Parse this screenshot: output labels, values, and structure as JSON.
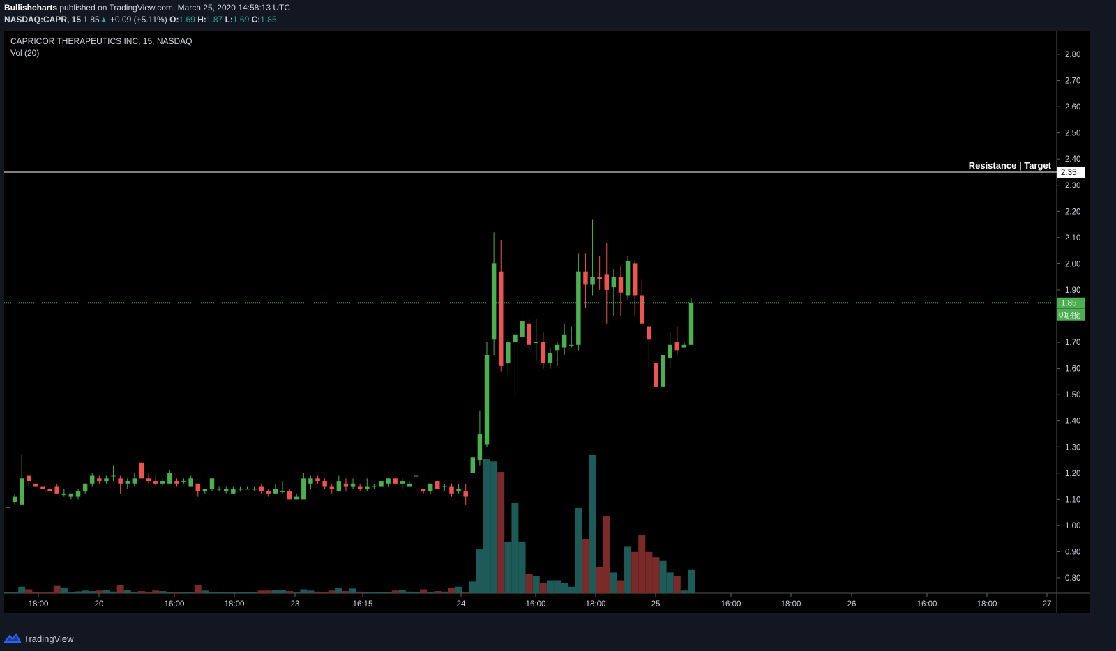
{
  "header": {
    "author": "Bullishcharts",
    "published_text": "published on TradingView.com, March 25, 2020 14:58:13 UTC",
    "symbol": "NASDAQ:CAPR, 15",
    "last": "1.85",
    "change_arrow": "▲",
    "change": "+0.09 (+5.11%)",
    "o_label": "O:",
    "o_value": "1.69",
    "h_label": "H:",
    "h_value": "1.87",
    "l_label": "L:",
    "l_value": "1.69",
    "c_label": "C:",
    "c_value": "1.85"
  },
  "legend": {
    "title": "CAPRICOR THERAPEUTICS INC, 15, NASDAQ",
    "volume_indicator": "Vol (20)"
  },
  "footer": {
    "brand": "TradingView",
    "logo_icon": "tradingview-logo-icon"
  },
  "colors": {
    "up": "#4caf50",
    "down": "#ef5350",
    "volume_up": "#1e5a57",
    "volume_down": "#7b2a2a",
    "resistance": "#ffffff",
    "last_price": "#4caf50"
  },
  "chart_data": {
    "type": "candlestick",
    "ylim": [
      0.75,
      2.85
    ],
    "y_ticks": [
      "2.80",
      "2.70",
      "2.60",
      "2.50",
      "2.40",
      "2.30",
      "2.20",
      "2.10",
      "2.00",
      "1.90",
      "1.80",
      "1.70",
      "1.60",
      "1.50",
      "1.40",
      "1.30",
      "1.20",
      "1.10",
      "1.00",
      "0.90",
      "0.80"
    ],
    "x_ticks": [
      "18:00",
      "20",
      "16:00",
      "18:00",
      "23",
      "16:15",
      "24",
      "16:00",
      "18:00",
      "25",
      "16:00",
      "18:00",
      "26",
      "16:00",
      "18:00",
      "27"
    ],
    "resistance": {
      "label": "Resistance | Target",
      "value": 2.35,
      "value_label": "2.35"
    },
    "last_price": {
      "value": 1.85,
      "value_label": "1.85",
      "countdown": "01:49"
    },
    "candles": [
      {
        "o": 1.07,
        "h": 1.07,
        "l": 1.07,
        "c": 1.07,
        "v": 0.005
      },
      {
        "o": 1.09,
        "h": 1.12,
        "l": 1.08,
        "c": 1.11,
        "v": 0.005
      },
      {
        "o": 1.08,
        "h": 1.27,
        "l": 1.08,
        "c": 1.18,
        "v": 0.025
      },
      {
        "o": 1.19,
        "h": 1.19,
        "l": 1.15,
        "c": 1.17,
        "v": 0.015
      },
      {
        "o": 1.16,
        "h": 1.16,
        "l": 1.14,
        "c": 1.15,
        "v": 0.005
      },
      {
        "o": 1.15,
        "h": 1.15,
        "l": 1.13,
        "c": 1.14,
        "v": 0.005
      },
      {
        "o": 1.14,
        "h": 1.16,
        "l": 1.13,
        "c": 1.13,
        "v": 0.003
      },
      {
        "o": 1.15,
        "h": 1.16,
        "l": 1.12,
        "c": 1.12,
        "v": 0.028
      },
      {
        "o": 1.12,
        "h": 1.14,
        "l": 1.11,
        "c": 1.12,
        "v": 0.022
      },
      {
        "o": 1.11,
        "h": 1.12,
        "l": 1.1,
        "c": 1.12,
        "v": 0.005
      },
      {
        "o": 1.11,
        "h": 1.14,
        "l": 1.1,
        "c": 1.13,
        "v": 0.007
      },
      {
        "o": 1.13,
        "h": 1.16,
        "l": 1.12,
        "c": 1.16,
        "v": 0.01
      },
      {
        "o": 1.16,
        "h": 1.2,
        "l": 1.15,
        "c": 1.19,
        "v": 0.008
      },
      {
        "o": 1.18,
        "h": 1.19,
        "l": 1.16,
        "c": 1.17,
        "v": 0.01
      },
      {
        "o": 1.17,
        "h": 1.19,
        "l": 1.16,
        "c": 1.18,
        "v": 0.012
      },
      {
        "o": 1.19,
        "h": 1.23,
        "l": 1.17,
        "c": 1.19,
        "v": 0.006
      },
      {
        "o": 1.18,
        "h": 1.19,
        "l": 1.12,
        "c": 1.16,
        "v": 0.03
      },
      {
        "o": 1.16,
        "h": 1.18,
        "l": 1.14,
        "c": 1.17,
        "v": 0.012
      },
      {
        "o": 1.16,
        "h": 1.2,
        "l": 1.15,
        "c": 1.18,
        "v": 0.005
      },
      {
        "o": 1.24,
        "h": 1.24,
        "l": 1.18,
        "c": 1.18,
        "v": 0.008
      },
      {
        "o": 1.18,
        "h": 1.2,
        "l": 1.16,
        "c": 1.17,
        "v": 0.005
      },
      {
        "o": 1.17,
        "h": 1.19,
        "l": 1.15,
        "c": 1.16,
        "v": 0.01
      },
      {
        "o": 1.16,
        "h": 1.18,
        "l": 1.15,
        "c": 1.17,
        "v": 0.008
      },
      {
        "o": 1.16,
        "h": 1.21,
        "l": 1.16,
        "c": 1.2,
        "v": 0.005
      },
      {
        "o": 1.17,
        "h": 1.18,
        "l": 1.15,
        "c": 1.16,
        "v": 0.005
      },
      {
        "o": 1.17,
        "h": 1.18,
        "l": 1.16,
        "c": 1.17,
        "v": 0.003
      },
      {
        "o": 1.15,
        "h": 1.19,
        "l": 1.15,
        "c": 1.18,
        "v": 0.004
      },
      {
        "o": 1.16,
        "h": 1.16,
        "l": 1.11,
        "c": 1.13,
        "v": 0.03
      },
      {
        "o": 1.13,
        "h": 1.14,
        "l": 1.12,
        "c": 1.14,
        "v": 0.01
      },
      {
        "o": 1.14,
        "h": 1.18,
        "l": 1.13,
        "c": 1.18,
        "v": 0.005
      },
      {
        "o": 1.14,
        "h": 1.15,
        "l": 1.13,
        "c": 1.14,
        "v": 0.004
      },
      {
        "o": 1.13,
        "h": 1.15,
        "l": 1.12,
        "c": 1.14,
        "v": 0.004
      },
      {
        "o": 1.12,
        "h": 1.15,
        "l": 1.12,
        "c": 1.14,
        "v": 0.003
      },
      {
        "o": 1.14,
        "h": 1.15,
        "l": 1.13,
        "c": 1.14,
        "v": 0.003
      },
      {
        "o": 1.14,
        "h": 1.15,
        "l": 1.14,
        "c": 1.14,
        "v": 0.005
      },
      {
        "o": 1.14,
        "h": 1.15,
        "l": 1.13,
        "c": 1.14,
        "v": 0.005
      },
      {
        "o": 1.15,
        "h": 1.16,
        "l": 1.12,
        "c": 1.13,
        "v": 0.01
      },
      {
        "o": 1.13,
        "h": 1.14,
        "l": 1.11,
        "c": 1.12,
        "v": 0.01
      },
      {
        "o": 1.12,
        "h": 1.16,
        "l": 1.12,
        "c": 1.14,
        "v": 0.012
      },
      {
        "o": 1.13,
        "h": 1.17,
        "l": 1.12,
        "c": 1.13,
        "v": 0.012
      },
      {
        "o": 1.13,
        "h": 1.14,
        "l": 1.1,
        "c": 1.1,
        "v": 0.008
      },
      {
        "o": 1.1,
        "h": 1.12,
        "l": 1.1,
        "c": 1.11,
        "v": 0.005
      },
      {
        "o": 1.1,
        "h": 1.2,
        "l": 1.1,
        "c": 1.18,
        "v": 0.015
      },
      {
        "o": 1.16,
        "h": 1.19,
        "l": 1.14,
        "c": 1.18,
        "v": 0.01
      },
      {
        "o": 1.18,
        "h": 1.19,
        "l": 1.16,
        "c": 1.17,
        "v": 0.006
      },
      {
        "o": 1.17,
        "h": 1.18,
        "l": 1.14,
        "c": 1.15,
        "v": 0.005
      },
      {
        "o": 1.15,
        "h": 1.16,
        "l": 1.12,
        "c": 1.14,
        "v": 0.01
      },
      {
        "o": 1.13,
        "h": 1.19,
        "l": 1.13,
        "c": 1.17,
        "v": 0.02
      },
      {
        "o": 1.16,
        "h": 1.18,
        "l": 1.13,
        "c": 1.15,
        "v": 0.008
      },
      {
        "o": 1.15,
        "h": 1.18,
        "l": 1.14,
        "c": 1.16,
        "v": 0.018
      },
      {
        "o": 1.15,
        "h": 1.16,
        "l": 1.13,
        "c": 1.14,
        "v": 0.006
      },
      {
        "o": 1.14,
        "h": 1.18,
        "l": 1.13,
        "c": 1.15,
        "v": 0.005
      },
      {
        "o": 1.15,
        "h": 1.16,
        "l": 1.14,
        "c": 1.15,
        "v": 0.003
      },
      {
        "o": 1.15,
        "h": 1.17,
        "l": 1.15,
        "c": 1.17,
        "v": 0.004
      },
      {
        "o": 1.16,
        "h": 1.18,
        "l": 1.15,
        "c": 1.18,
        "v": 0.004
      },
      {
        "o": 1.18,
        "h": 1.18,
        "l": 1.15,
        "c": 1.16,
        "v": 0.01
      },
      {
        "o": 1.16,
        "h": 1.18,
        "l": 1.14,
        "c": 1.17,
        "v": 0.012
      },
      {
        "o": 1.15,
        "h": 1.17,
        "l": 1.15,
        "c": 1.16,
        "v": 0.006
      },
      {
        "o": 1.19,
        "h": 1.19,
        "l": 1.19,
        "c": 1.19,
        "v": 0.005
      },
      {
        "o": 1.14,
        "h": 1.14,
        "l": 1.12,
        "c": 1.13,
        "v": 0.015
      },
      {
        "o": 1.13,
        "h": 1.16,
        "l": 1.12,
        "c": 1.16,
        "v": 0.004
      },
      {
        "o": 1.17,
        "h": 1.17,
        "l": 1.14,
        "c": 1.14,
        "v": 0.008
      },
      {
        "o": 1.15,
        "h": 1.16,
        "l": 1.13,
        "c": 1.15,
        "v": 0.006
      },
      {
        "o": 1.15,
        "h": 1.16,
        "l": 1.11,
        "c": 1.12,
        "v": 0.022
      },
      {
        "o": 1.13,
        "h": 1.16,
        "l": 1.12,
        "c": 1.14,
        "v": 0.025
      },
      {
        "o": 1.13,
        "h": 1.16,
        "l": 1.08,
        "c": 1.11,
        "v": 0.003
      },
      {
        "o": 1.2,
        "h": 1.26,
        "l": 1.2,
        "c": 1.26,
        "v": 0.045
      },
      {
        "o": 1.25,
        "h": 1.44,
        "l": 1.23,
        "c": 1.35,
        "v": 0.17
      },
      {
        "o": 1.31,
        "h": 1.7,
        "l": 1.3,
        "c": 1.65,
        "v": 0.52
      },
      {
        "o": 1.71,
        "h": 2.12,
        "l": 1.65,
        "c": 2.0,
        "v": 0.51
      },
      {
        "o": 1.97,
        "h": 2.09,
        "l": 1.59,
        "c": 1.61,
        "v": 0.47
      },
      {
        "o": 1.62,
        "h": 1.71,
        "l": 1.58,
        "c": 1.7,
        "v": 0.2
      },
      {
        "o": 1.7,
        "h": 1.73,
        "l": 1.5,
        "c": 1.73,
        "v": 0.35
      },
      {
        "o": 1.72,
        "h": 1.85,
        "l": 1.67,
        "c": 1.78,
        "v": 0.2
      },
      {
        "o": 1.77,
        "h": 1.79,
        "l": 1.67,
        "c": 1.69,
        "v": 0.075
      },
      {
        "o": 1.7,
        "h": 1.79,
        "l": 1.63,
        "c": 1.7,
        "v": 0.065
      },
      {
        "o": 1.7,
        "h": 1.74,
        "l": 1.6,
        "c": 1.62,
        "v": 0.04
      },
      {
        "o": 1.62,
        "h": 1.68,
        "l": 1.6,
        "c": 1.66,
        "v": 0.05
      },
      {
        "o": 1.67,
        "h": 1.7,
        "l": 1.61,
        "c": 1.69,
        "v": 0.05
      },
      {
        "o": 1.68,
        "h": 1.77,
        "l": 1.65,
        "c": 1.73,
        "v": 0.04
      },
      {
        "o": 1.69,
        "h": 1.76,
        "l": 1.68,
        "c": 1.69,
        "v": 0.025
      },
      {
        "o": 1.69,
        "h": 2.04,
        "l": 1.67,
        "c": 1.97,
        "v": 0.33
      },
      {
        "o": 1.97,
        "h": 2.04,
        "l": 1.83,
        "c": 1.92,
        "v": 0.21
      },
      {
        "o": 1.92,
        "h": 2.17,
        "l": 1.88,
        "c": 1.95,
        "v": 0.535
      },
      {
        "o": 1.95,
        "h": 2.03,
        "l": 1.9,
        "c": 1.94,
        "v": 0.1
      },
      {
        "o": 1.96,
        "h": 2.08,
        "l": 1.77,
        "c": 1.9,
        "v": 0.3
      },
      {
        "o": 1.91,
        "h": 1.98,
        "l": 1.8,
        "c": 1.95,
        "v": 0.08
      },
      {
        "o": 1.95,
        "h": 1.99,
        "l": 1.8,
        "c": 1.89,
        "v": 0.05
      },
      {
        "o": 1.88,
        "h": 2.03,
        "l": 1.86,
        "c": 2.01,
        "v": 0.18
      },
      {
        "o": 2.0,
        "h": 2.01,
        "l": 1.8,
        "c": 1.88,
        "v": 0.16
      },
      {
        "o": 1.88,
        "h": 1.94,
        "l": 1.77,
        "c": 1.77,
        "v": 0.225
      },
      {
        "o": 1.76,
        "h": 1.76,
        "l": 1.61,
        "c": 1.71,
        "v": 0.16
      },
      {
        "o": 1.62,
        "h": 1.63,
        "l": 1.5,
        "c": 1.53,
        "v": 0.14
      },
      {
        "o": 1.53,
        "h": 1.65,
        "l": 1.53,
        "c": 1.65,
        "v": 0.125
      },
      {
        "o": 1.64,
        "h": 1.74,
        "l": 1.6,
        "c": 1.69,
        "v": 0.08
      },
      {
        "o": 1.7,
        "h": 1.76,
        "l": 1.65,
        "c": 1.67,
        "v": 0.065
      },
      {
        "o": 1.68,
        "h": 1.7,
        "l": 1.68,
        "c": 1.69,
        "v": 0.01
      },
      {
        "o": 1.69,
        "h": 1.87,
        "l": 1.69,
        "c": 1.85,
        "v": 0.09
      }
    ]
  }
}
